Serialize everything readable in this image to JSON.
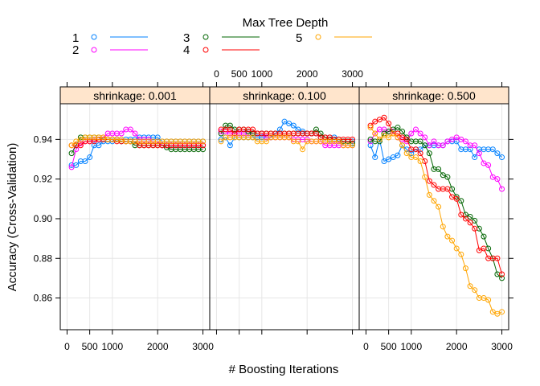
{
  "chart_data": {
    "type": "line",
    "xlabel": "# Boosting Iterations",
    "ylabel": "Accuracy (Cross-Validation)",
    "legend": {
      "title": "Max Tree Depth",
      "placement": "top",
      "entries": [
        {
          "label": "1",
          "color": "#0080ff"
        },
        {
          "label": "2",
          "color": "#ff00ff"
        },
        {
          "label": "3",
          "color": "#006400"
        },
        {
          "label": "4",
          "color": "#ff0000"
        },
        {
          "label": "5",
          "color": "#ffa500"
        }
      ]
    },
    "xlim": [
      -150,
      3150
    ],
    "ylim": [
      0.844,
      0.958
    ],
    "xticks": [
      0,
      500,
      1000,
      2000,
      3000
    ],
    "xtick_labels": [
      "0",
      "500",
      "1000",
      "2000",
      "3000"
    ],
    "yticks": [
      0.86,
      0.88,
      0.9,
      0.92,
      0.94
    ],
    "ytick_labels": [
      "0.86",
      "0.88",
      "0.90",
      "0.92",
      "0.94"
    ],
    "grid": true,
    "x": [
      100,
      200,
      300,
      400,
      500,
      600,
      700,
      800,
      900,
      1000,
      1100,
      1200,
      1300,
      1400,
      1500,
      1600,
      1700,
      1800,
      1900,
      2000,
      2100,
      2200,
      2300,
      2400,
      2500,
      2600,
      2700,
      2800,
      2900,
      3000
    ],
    "panels": [
      {
        "strip": "shrinkage: 0.001",
        "series": [
          {
            "name": "1",
            "values": [
              0.927,
              0.927,
              0.929,
              0.929,
              0.931,
              0.937,
              0.937,
              0.939,
              0.939,
              0.939,
              0.94,
              0.94,
              0.94,
              0.94,
              0.94,
              0.941,
              0.941,
              0.941,
              0.941,
              0.941,
              0.939,
              0.939,
              0.939,
              0.939,
              0.939,
              0.939,
              0.939,
              0.939,
              0.939,
              0.939
            ]
          },
          {
            "name": "2",
            "values": [
              0.926,
              0.935,
              0.938,
              0.939,
              0.939,
              0.94,
              0.94,
              0.941,
              0.943,
              0.943,
              0.943,
              0.943,
              0.945,
              0.945,
              0.943,
              0.94,
              0.94,
              0.94,
              0.939,
              0.939,
              0.937,
              0.937,
              0.937,
              0.937,
              0.937,
              0.937,
              0.937,
              0.937,
              0.937,
              0.937
            ]
          },
          {
            "name": "3",
            "values": [
              0.933,
              0.937,
              0.941,
              0.941,
              0.941,
              0.941,
              0.941,
              0.94,
              0.94,
              0.94,
              0.94,
              0.939,
              0.939,
              0.939,
              0.937,
              0.937,
              0.937,
              0.937,
              0.937,
              0.937,
              0.937,
              0.936,
              0.935,
              0.935,
              0.935,
              0.935,
              0.935,
              0.935,
              0.935,
              0.935
            ]
          },
          {
            "name": "4",
            "values": [
              0.937,
              0.937,
              0.937,
              0.939,
              0.939,
              0.939,
              0.94,
              0.94,
              0.94,
              0.94,
              0.939,
              0.939,
              0.939,
              0.939,
              0.939,
              0.937,
              0.937,
              0.937,
              0.937,
              0.937,
              0.937,
              0.937,
              0.937,
              0.937,
              0.937,
              0.937,
              0.937,
              0.937,
              0.937,
              0.937
            ]
          },
          {
            "name": "5",
            "values": [
              0.937,
              0.939,
              0.94,
              0.941,
              0.941,
              0.941,
              0.941,
              0.941,
              0.94,
              0.94,
              0.94,
              0.94,
              0.939,
              0.939,
              0.939,
              0.939,
              0.939,
              0.939,
              0.939,
              0.939,
              0.939,
              0.939,
              0.939,
              0.939,
              0.939,
              0.939,
              0.939,
              0.939,
              0.939,
              0.939
            ]
          }
        ]
      },
      {
        "strip": "shrinkage: 0.100",
        "series": [
          {
            "name": "1",
            "values": [
              0.94,
              0.941,
              0.937,
              0.941,
              0.941,
              0.941,
              0.941,
              0.941,
              0.941,
              0.941,
              0.941,
              0.941,
              0.943,
              0.945,
              0.949,
              0.948,
              0.947,
              0.945,
              0.944,
              0.943,
              0.943,
              0.943,
              0.941,
              0.941,
              0.941,
              0.941,
              0.939,
              0.939,
              0.939,
              0.939
            ]
          },
          {
            "name": "2",
            "values": [
              0.944,
              0.944,
              0.943,
              0.943,
              0.943,
              0.943,
              0.943,
              0.943,
              0.943,
              0.943,
              0.941,
              0.941,
              0.941,
              0.941,
              0.941,
              0.941,
              0.94,
              0.94,
              0.94,
              0.94,
              0.939,
              0.939,
              0.939,
              0.937,
              0.937,
              0.937,
              0.937,
              0.937,
              0.937,
              0.937
            ]
          },
          {
            "name": "3",
            "values": [
              0.943,
              0.947,
              0.947,
              0.945,
              0.945,
              0.945,
              0.944,
              0.943,
              0.943,
              0.943,
              0.943,
              0.943,
              0.943,
              0.943,
              0.943,
              0.943,
              0.943,
              0.943,
              0.943,
              0.943,
              0.943,
              0.945,
              0.943,
              0.941,
              0.94,
              0.94,
              0.94,
              0.939,
              0.939,
              0.938
            ]
          },
          {
            "name": "4",
            "values": [
              0.945,
              0.945,
              0.945,
              0.943,
              0.945,
              0.945,
              0.945,
              0.945,
              0.943,
              0.943,
              0.943,
              0.943,
              0.943,
              0.943,
              0.943,
              0.943,
              0.943,
              0.943,
              0.943,
              0.943,
              0.943,
              0.943,
              0.941,
              0.941,
              0.941,
              0.94,
              0.94,
              0.94,
              0.94,
              0.94
            ]
          },
          {
            "name": "5",
            "values": [
              0.939,
              0.941,
              0.941,
              0.941,
              0.941,
              0.941,
              0.941,
              0.941,
              0.939,
              0.939,
              0.939,
              0.941,
              0.941,
              0.941,
              0.941,
              0.941,
              0.939,
              0.939,
              0.935,
              0.939,
              0.939,
              0.939,
              0.939,
              0.939,
              0.939,
              0.939,
              0.939,
              0.937,
              0.937,
              0.937
            ]
          }
        ]
      },
      {
        "strip": "shrinkage: 0.500",
        "series": [
          {
            "name": "1",
            "values": [
              0.937,
              0.931,
              0.94,
              0.929,
              0.93,
              0.931,
              0.932,
              0.937,
              0.935,
              0.933,
              0.935,
              0.935,
              0.937,
              0.937,
              0.937,
              0.937,
              0.937,
              0.939,
              0.939,
              0.939,
              0.935,
              0.935,
              0.935,
              0.931,
              0.935,
              0.935,
              0.935,
              0.935,
              0.933,
              0.931
            ]
          },
          {
            "name": "2",
            "values": [
              0.939,
              0.943,
              0.945,
              0.945,
              0.944,
              0.944,
              0.941,
              0.94,
              0.939,
              0.943,
              0.945,
              0.943,
              0.941,
              0.937,
              0.939,
              0.937,
              0.937,
              0.939,
              0.94,
              0.941,
              0.94,
              0.939,
              0.937,
              0.937,
              0.933,
              0.928,
              0.927,
              0.921,
              0.92,
              0.915
            ]
          },
          {
            "name": "3",
            "values": [
              0.94,
              0.939,
              0.939,
              0.943,
              0.944,
              0.945,
              0.946,
              0.944,
              0.941,
              0.939,
              0.939,
              0.939,
              0.937,
              0.933,
              0.925,
              0.925,
              0.922,
              0.921,
              0.915,
              0.911,
              0.909,
              0.902,
              0.901,
              0.899,
              0.895,
              0.891,
              0.885,
              0.88,
              0.872,
              0.87
            ]
          },
          {
            "name": "4",
            "values": [
              0.947,
              0.949,
              0.95,
              0.951,
              0.948,
              0.943,
              0.943,
              0.941,
              0.94,
              0.935,
              0.935,
              0.933,
              0.929,
              0.919,
              0.917,
              0.915,
              0.915,
              0.915,
              0.911,
              0.91,
              0.902,
              0.9,
              0.898,
              0.895,
              0.884,
              0.885,
              0.88,
              0.88,
              0.88,
              0.872
            ]
          },
          {
            "name": "5",
            "values": [
              0.946,
              0.943,
              0.94,
              0.942,
              0.941,
              0.943,
              0.941,
              0.937,
              0.933,
              0.931,
              0.931,
              0.929,
              0.921,
              0.912,
              0.909,
              0.906,
              0.896,
              0.891,
              0.889,
              0.885,
              0.882,
              0.875,
              0.866,
              0.864,
              0.86,
              0.86,
              0.859,
              0.853,
              0.852,
              0.853
            ]
          }
        ]
      }
    ]
  }
}
